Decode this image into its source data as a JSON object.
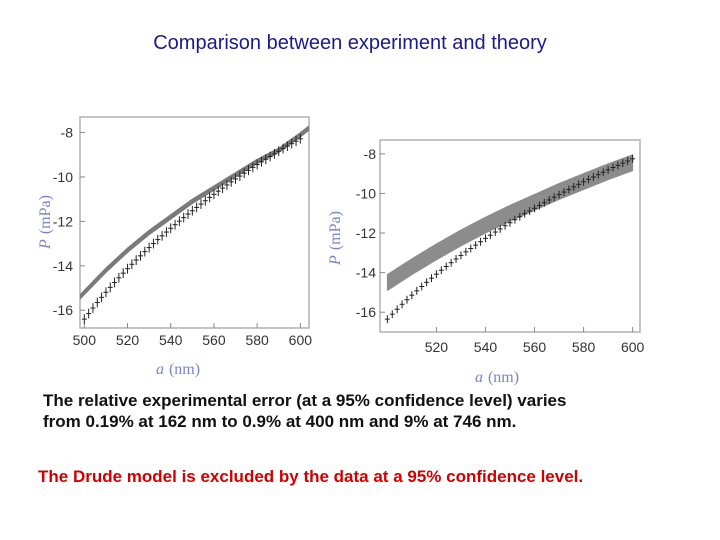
{
  "title": "Comparison between experiment and theory",
  "chart_data": [
    {
      "type": "line",
      "xlabel_symbol": "a",
      "xlabel_unit": "(nm)",
      "ylabel_symbol": "P",
      "ylabel_unit": "(mPa)",
      "xlim": [
        498,
        604
      ],
      "ylim": [
        -16.8,
        -7.3
      ],
      "xticks": [
        500,
        520,
        540,
        560,
        580,
        600
      ],
      "yticks": [
        -8,
        -10,
        -12,
        -14,
        -16
      ],
      "series": [
        {
          "kind": "theory-band",
          "color": "#7a7a7a",
          "x": [
            498,
            510,
            520,
            530,
            540,
            550,
            560,
            570,
            580,
            590,
            600,
            604
          ],
          "upper": [
            -15.3,
            -14.1,
            -13.2,
            -12.4,
            -11.7,
            -11.0,
            -10.4,
            -9.8,
            -9.2,
            -8.7,
            -8.0,
            -7.7
          ],
          "lower": [
            -15.5,
            -14.3,
            -13.4,
            -12.6,
            -11.9,
            -11.2,
            -10.6,
            -10.0,
            -9.4,
            -8.9,
            -8.2,
            -7.9
          ]
        },
        {
          "kind": "experiment",
          "color": "#222222",
          "x": [
            500,
            502,
            504,
            506,
            508,
            510,
            512,
            514,
            516,
            518,
            520,
            522,
            524,
            526,
            528,
            530,
            532,
            534,
            536,
            538,
            540,
            542,
            544,
            546,
            548,
            550,
            552,
            554,
            556,
            558,
            560,
            562,
            564,
            566,
            568,
            570,
            572,
            574,
            576,
            578,
            580,
            582,
            584,
            586,
            588,
            590,
            592,
            594,
            596,
            598,
            600
          ],
          "y": [
            -16.4,
            -16.15,
            -15.9,
            -15.65,
            -15.42,
            -15.19,
            -14.97,
            -14.75,
            -14.54,
            -14.33,
            -14.13,
            -13.93,
            -13.74,
            -13.55,
            -13.36,
            -13.18,
            -13.0,
            -12.82,
            -12.65,
            -12.48,
            -12.31,
            -12.15,
            -11.99,
            -11.83,
            -11.67,
            -11.52,
            -11.37,
            -11.22,
            -11.07,
            -10.92,
            -10.78,
            -10.64,
            -10.5,
            -10.36,
            -10.22,
            -10.09,
            -9.96,
            -9.83,
            -9.7,
            -9.57,
            -9.44,
            -9.32,
            -9.2,
            -9.08,
            -8.96,
            -8.84,
            -8.72,
            -8.61,
            -8.5,
            -8.39,
            -8.28
          ],
          "err": 0.22
        }
      ]
    },
    {
      "type": "line",
      "xlabel_symbol": "a",
      "xlabel_unit": "(nm)",
      "ylabel_symbol": "P",
      "ylabel_unit": "(mPa)",
      "xlim": [
        497,
        603
      ],
      "ylim": [
        -17.0,
        -7.3
      ],
      "xticks": [
        520,
        540,
        560,
        580,
        600
      ],
      "yticks": [
        -8,
        -10,
        -12,
        -14,
        -16
      ],
      "series": [
        {
          "kind": "theory-band",
          "color": "#8c8c8c",
          "x": [
            500,
            510,
            520,
            530,
            540,
            550,
            560,
            570,
            580,
            590,
            600
          ],
          "upper": [
            -14.1,
            -13.3,
            -12.55,
            -11.85,
            -11.2,
            -10.6,
            -10.05,
            -9.5,
            -9.0,
            -8.5,
            -8.05
          ],
          "lower": [
            -14.9,
            -14.1,
            -13.35,
            -12.65,
            -12.0,
            -11.4,
            -10.85,
            -10.3,
            -9.8,
            -9.3,
            -8.85
          ]
        },
        {
          "kind": "experiment",
          "color": "#222222",
          "x": [
            500,
            502,
            504,
            506,
            508,
            510,
            512,
            514,
            516,
            518,
            520,
            522,
            524,
            526,
            528,
            530,
            532,
            534,
            536,
            538,
            540,
            542,
            544,
            546,
            548,
            550,
            552,
            554,
            556,
            558,
            560,
            562,
            564,
            566,
            568,
            570,
            572,
            574,
            576,
            578,
            580,
            582,
            584,
            586,
            588,
            590,
            592,
            594,
            596,
            598,
            600
          ],
          "y": [
            -16.35,
            -16.1,
            -15.85,
            -15.6,
            -15.37,
            -15.14,
            -14.92,
            -14.7,
            -14.49,
            -14.28,
            -14.08,
            -13.88,
            -13.69,
            -13.5,
            -13.31,
            -13.13,
            -12.95,
            -12.78,
            -12.61,
            -12.44,
            -12.27,
            -12.11,
            -11.95,
            -11.79,
            -11.63,
            -11.48,
            -11.33,
            -11.18,
            -11.03,
            -10.89,
            -10.75,
            -10.61,
            -10.47,
            -10.33,
            -10.19,
            -10.06,
            -9.93,
            -9.8,
            -9.67,
            -9.54,
            -9.41,
            -9.29,
            -9.17,
            -9.05,
            -8.93,
            -8.81,
            -8.69,
            -8.58,
            -8.47,
            -8.36,
            -8.25
          ],
          "err": 0.2
        }
      ]
    }
  ],
  "body_line1": "The relative experimental error (at a 95% confidence level) varies",
  "body_line2": "from 0.19% at 162 nm  to 0.9% at 400 nm and 9% at  746 nm.",
  "conclusion": "The Drude model is excluded by the data at a 95% confidence level."
}
